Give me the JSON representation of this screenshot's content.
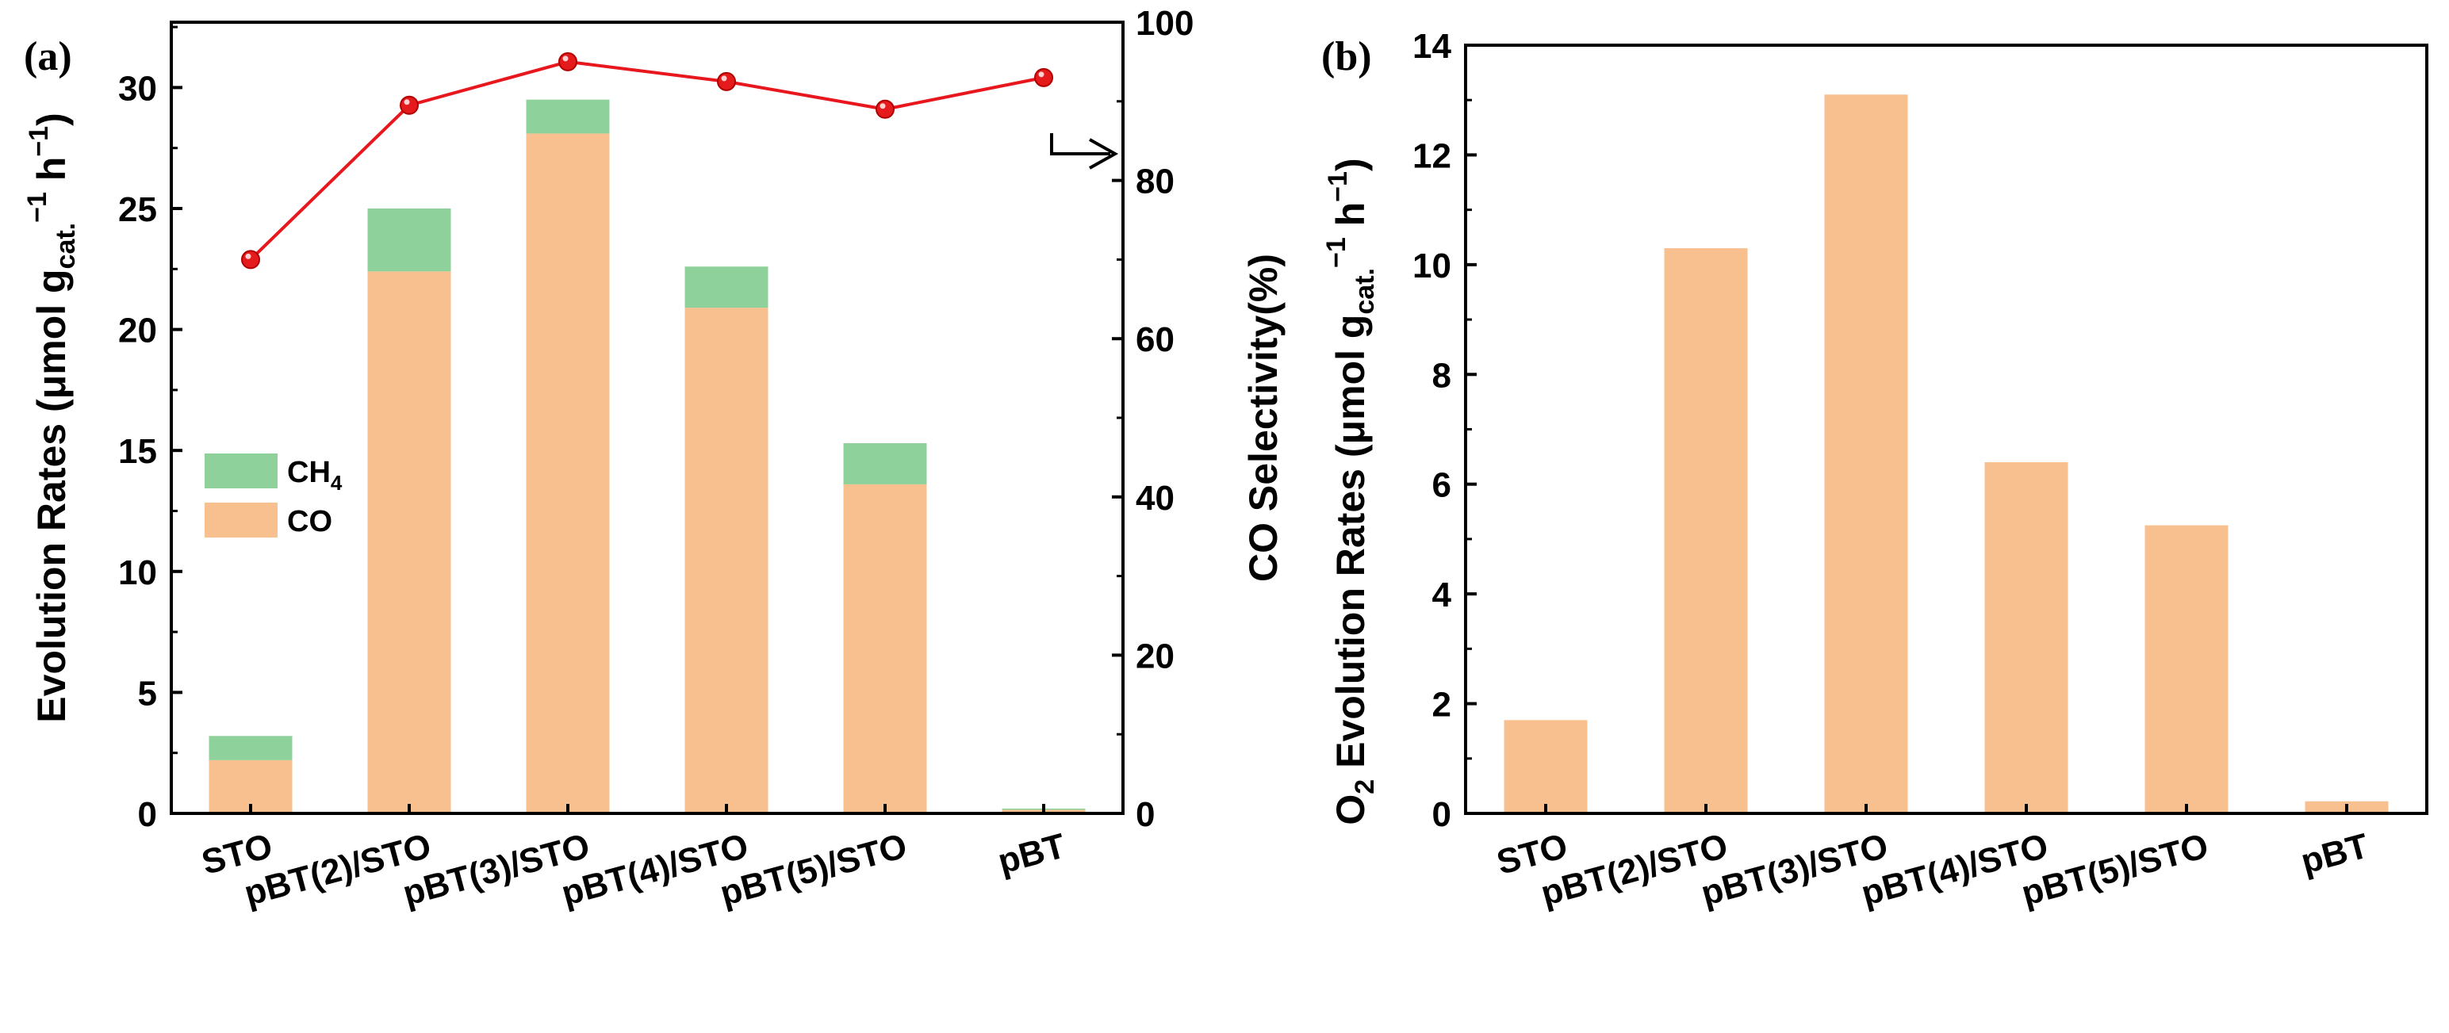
{
  "chart_data": [
    {
      "panel_label": "(a)",
      "type": "bar",
      "stacked": true,
      "categories": [
        "STO",
        "pBT(2)/STO",
        "pBT(3)/STO",
        "pBT(4)/STO",
        "pBT(5)/STO",
        "pBT"
      ],
      "series": [
        {
          "name": "CO",
          "values": [
            2.2,
            22.4,
            28.1,
            20.9,
            13.6,
            0.15
          ],
          "color": "#f9c08f"
        },
        {
          "name": "CH4",
          "values": [
            1.0,
            2.6,
            1.4,
            1.7,
            1.7,
            0.05
          ],
          "color": "#8fd19a"
        }
      ],
      "line_series": {
        "name": "CO Selectivity",
        "axis": "right",
        "values": [
          70,
          89.5,
          95,
          92.5,
          89,
          93
        ],
        "color": "#e8171e",
        "marker_color": "#e41a1c"
      },
      "legend": [
        {
          "label": "CH",
          "sub": "4"
        },
        {
          "label": "CO",
          "sub": ""
        }
      ],
      "ylabel_left": {
        "main": "Evolution Rates (μmol g",
        "sub": "cat.",
        "sup": "−1",
        "end": " h",
        "end_sup": "−1",
        "close": ")"
      },
      "ylabel_right": "CO Selectivity(%)",
      "ylim_left": [
        0,
        32.7
      ],
      "yticks_left": [
        "0",
        "5",
        "10",
        "15",
        "20",
        "25",
        "30"
      ],
      "ylim_right": [
        0,
        100
      ],
      "yticks_right": [
        "0",
        "20",
        "40",
        "60",
        "80",
        "100"
      ],
      "legend_position": "center-left"
    },
    {
      "panel_label": "(b)",
      "type": "bar",
      "categories": [
        "STO",
        "pBT(2)/STO",
        "pBT(3)/STO",
        "pBT(4)/STO",
        "pBT(5)/STO",
        "pBT"
      ],
      "values": [
        1.7,
        10.3,
        13.1,
        6.4,
        5.25,
        0.22
      ],
      "color": "#f9c08f",
      "ylabel": {
        "pre": "O",
        "pre_sub": "2",
        "main": " Evolution Rates (μmol g",
        "sub": "cat.",
        "sup": "−1",
        "end": " h",
        "end_sup": "−1",
        "close": ")"
      },
      "ylim": [
        0,
        14
      ],
      "yticks": [
        "0",
        "2",
        "4",
        "6",
        "8",
        "10",
        "12",
        "14"
      ]
    }
  ]
}
